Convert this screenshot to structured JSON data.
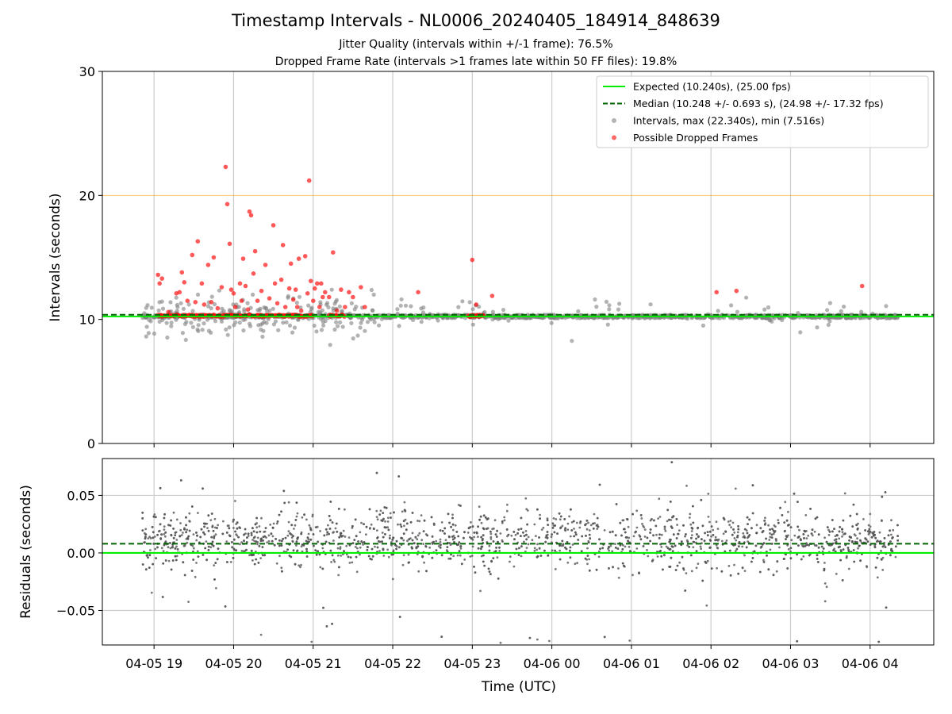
{
  "page": {
    "title": "Timestamp Intervals - NL0006_20240405_184914_848639",
    "subtitle_1": "Jitter Quality (intervals within +/-1 frame): 76.5%",
    "subtitle_2": "Dropped Frame Rate (intervals >1 frames late within 50 FF files): 19.8%"
  },
  "colors": {
    "expected": "#00ee00",
    "median": "#006400",
    "intervals": "#808080",
    "dropped": "#ff0000",
    "threshold": "#ffa500",
    "grid": "#cccccc"
  },
  "chart_data": [
    {
      "type": "scatter",
      "ylabel": "Intervals (seconds)",
      "ylim": [
        0,
        30
      ],
      "yticks": [
        "0",
        "10",
        "20",
        "30"
      ],
      "x_range_hours_utc": [
        18.35,
        28.8
      ],
      "grid": "vertical at hourly ticks",
      "legend_placement": "top-right",
      "legend": [
        {
          "label": "Expected (10.240s), (25.00 fps)",
          "style": "solid-line",
          "color": "#00ee00"
        },
        {
          "label": "Median (10.248 +/- 0.693 s), (24.98 +/- 17.32 fps)",
          "style": "dashed-line",
          "color": "#006400"
        },
        {
          "label": "Intervals, max (22.340s), min (7.516s)",
          "style": "dot",
          "color": "#808080"
        },
        {
          "label": "Possible Dropped Frames",
          "style": "dot",
          "color": "#ff0000"
        }
      ],
      "expected_interval_s": 10.24,
      "median_interval_s": 10.248,
      "threshold_line_s": 20,
      "max_interval_s": 22.34,
      "min_interval_s": 7.516,
      "dropped_points": [
        [
          19.05,
          13.6
        ],
        [
          19.07,
          12.9
        ],
        [
          19.1,
          13.3
        ],
        [
          19.18,
          10.6
        ],
        [
          19.28,
          12.1
        ],
        [
          19.32,
          12.2
        ],
        [
          19.35,
          13.8
        ],
        [
          19.38,
          13.0
        ],
        [
          19.42,
          11.5
        ],
        [
          19.48,
          15.2
        ],
        [
          19.52,
          11.4
        ],
        [
          19.55,
          16.3
        ],
        [
          19.6,
          12.9
        ],
        [
          19.63,
          11.2
        ],
        [
          19.68,
          14.4
        ],
        [
          19.72,
          11.4
        ],
        [
          19.75,
          15.0
        ],
        [
          19.8,
          10.9
        ],
        [
          19.85,
          12.6
        ],
        [
          19.9,
          22.3
        ],
        [
          19.92,
          19.3
        ],
        [
          19.95,
          16.1
        ],
        [
          19.97,
          12.4
        ],
        [
          20.0,
          12.1
        ],
        [
          20.02,
          11.0
        ],
        [
          20.08,
          12.9
        ],
        [
          20.1,
          11.5
        ],
        [
          20.12,
          14.9
        ],
        [
          20.15,
          12.7
        ],
        [
          20.18,
          10.8
        ],
        [
          20.2,
          18.7
        ],
        [
          20.22,
          18.4
        ],
        [
          20.25,
          13.7
        ],
        [
          20.27,
          15.5
        ],
        [
          20.3,
          11.5
        ],
        [
          20.35,
          12.3
        ],
        [
          20.4,
          14.4
        ],
        [
          20.45,
          11.7
        ],
        [
          20.5,
          17.6
        ],
        [
          20.52,
          12.9
        ],
        [
          20.55,
          11.3
        ],
        [
          20.6,
          13.2
        ],
        [
          20.62,
          16.0
        ],
        [
          20.65,
          11.0
        ],
        [
          20.7,
          12.5
        ],
        [
          20.72,
          14.5
        ],
        [
          20.75,
          11.6
        ],
        [
          20.78,
          12.4
        ],
        [
          20.8,
          11.0
        ],
        [
          20.82,
          14.9
        ],
        [
          20.85,
          10.7
        ],
        [
          20.9,
          15.1
        ],
        [
          20.93,
          12.1
        ],
        [
          20.95,
          21.2
        ],
        [
          20.97,
          13.1
        ],
        [
          21.0,
          11.5
        ],
        [
          21.02,
          12.5
        ],
        [
          21.05,
          12.9
        ],
        [
          21.08,
          11.0
        ],
        [
          21.1,
          12.9
        ],
        [
          21.12,
          11.8
        ],
        [
          21.15,
          12.2
        ],
        [
          21.2,
          11.8
        ],
        [
          21.25,
          15.4
        ],
        [
          21.3,
          10.7
        ],
        [
          21.35,
          12.4
        ],
        [
          21.4,
          11.0
        ],
        [
          21.45,
          12.2
        ],
        [
          21.5,
          11.8
        ],
        [
          21.6,
          12.6
        ],
        [
          21.65,
          11.0
        ],
        [
          22.32,
          12.2
        ],
        [
          23.0,
          14.8
        ],
        [
          23.05,
          11.2
        ],
        [
          23.25,
          11.9
        ],
        [
          26.07,
          12.2
        ],
        [
          26.32,
          12.3
        ],
        [
          27.9,
          12.7
        ]
      ]
    },
    {
      "type": "scatter",
      "xlabel": "Time (UTC)",
      "ylabel": "Residuals (seconds)",
      "ylim": [
        -0.08,
        0.082
      ],
      "yticks": [
        "−0.05",
        "0.00",
        "0.05"
      ],
      "xticks": [
        "04-05 19",
        "04-05 20",
        "04-05 21",
        "04-05 22",
        "04-05 23",
        "04-06 00",
        "04-06 01",
        "04-06 02",
        "04-06 03",
        "04-06 04"
      ],
      "grid": "horizontal and vertical",
      "expected_residual_s": 0.0,
      "median_residual_s": 0.008,
      "residual_spread_note": "dense gray points, mostly between -0.03 and 0.05"
    }
  ]
}
